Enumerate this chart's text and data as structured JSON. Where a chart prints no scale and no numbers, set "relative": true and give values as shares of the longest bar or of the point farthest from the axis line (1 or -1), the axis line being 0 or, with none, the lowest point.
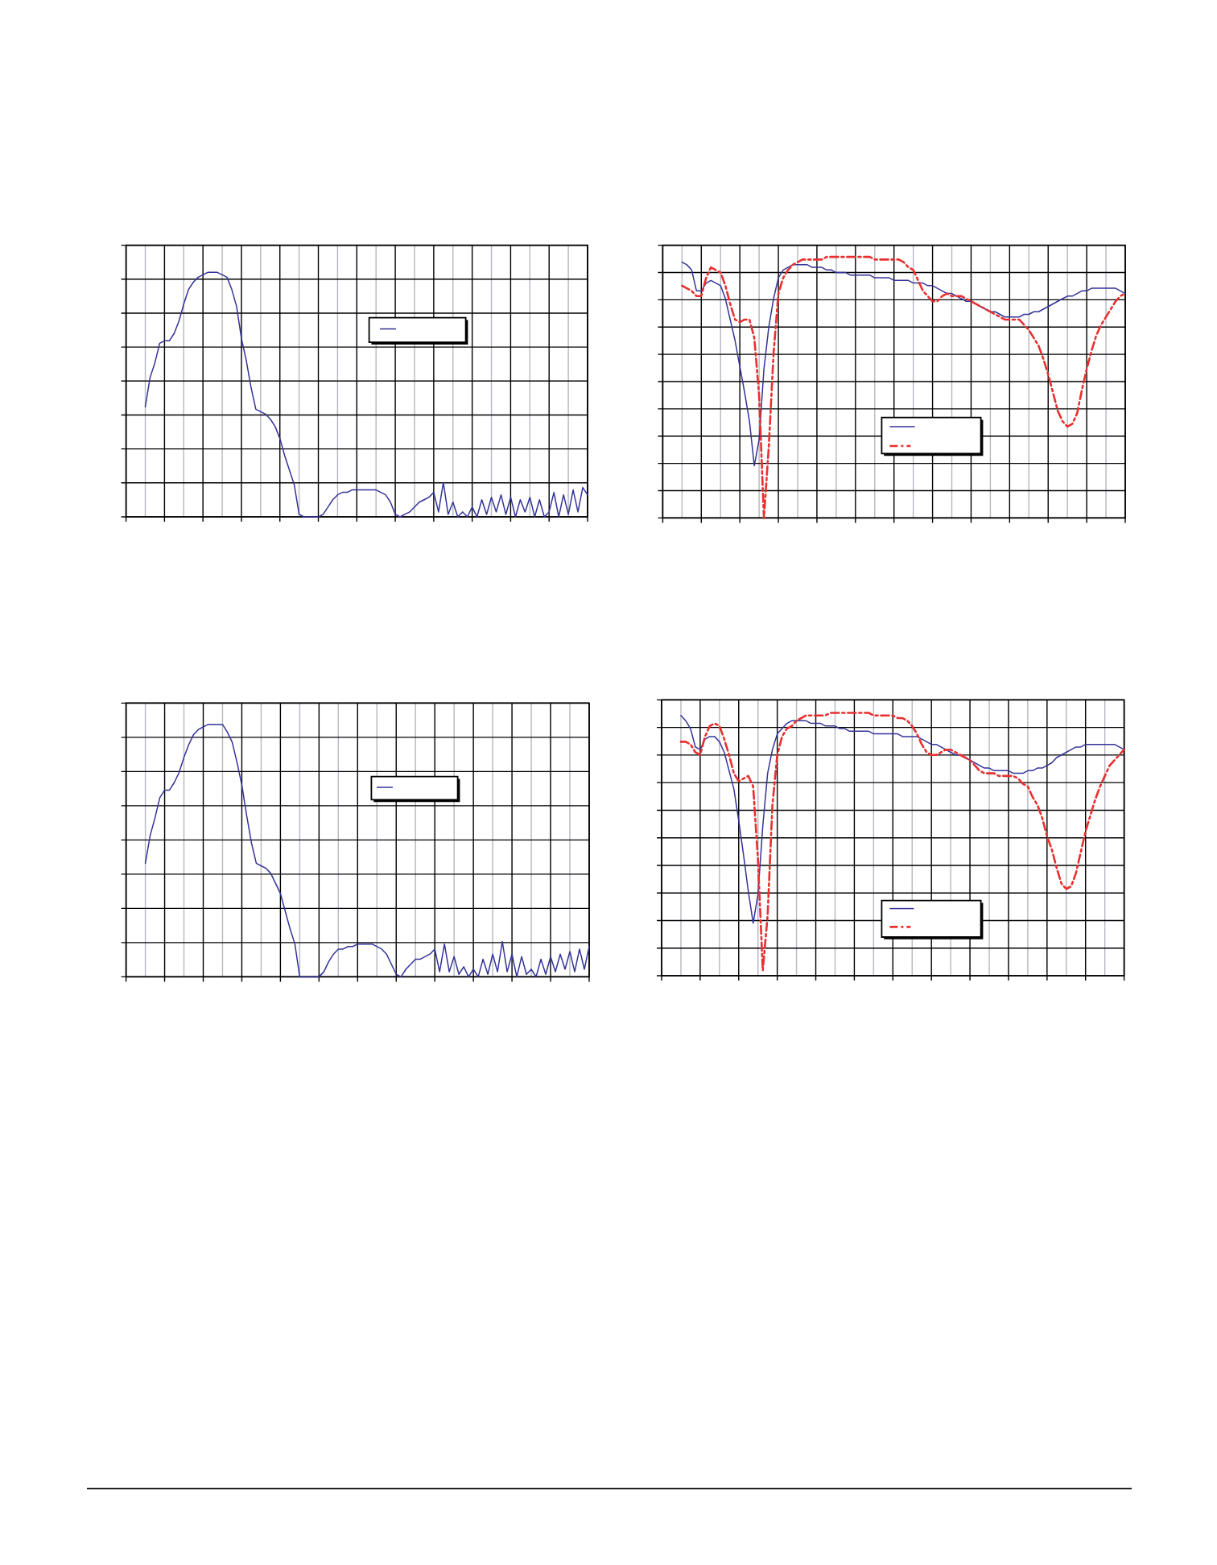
{
  "chart_data": [
    {
      "type": "line",
      "relative": true,
      "grid": true,
      "categories": [
        null,
        null,
        null,
        null,
        null,
        null,
        null,
        null,
        null,
        null,
        null,
        null,
        null,
        null,
        null,
        null,
        null,
        null,
        null,
        null,
        null,
        null,
        null,
        null,
        null,
        null,
        null,
        null,
        null,
        null,
        null,
        null,
        null,
        null,
        null,
        null,
        null,
        null,
        null,
        null,
        null,
        null,
        null,
        null,
        null,
        null,
        null,
        null,
        null,
        null,
        null,
        null,
        null,
        null,
        null,
        null,
        null,
        null,
        null,
        null,
        null,
        null,
        null,
        null,
        null,
        null,
        null,
        null,
        null,
        null,
        null,
        null,
        null,
        null,
        null,
        null,
        null,
        null,
        null,
        null,
        null,
        null,
        null,
        null,
        null,
        null,
        null,
        null,
        null,
        null,
        null,
        null,
        null
      ],
      "series": [
        {
          "color": "#333399",
          "values": [
            0.45,
            0.57,
            0.63,
            0.71,
            0.72,
            0.72,
            0.75,
            0.8,
            0.87,
            0.93,
            0.96,
            0.98,
            0.99,
            1.0,
            1.0,
            1.0,
            0.99,
            0.98,
            0.93,
            0.86,
            0.73,
            0.64,
            0.53,
            0.44,
            0.43,
            0.42,
            0.4,
            0.37,
            0.32,
            0.25,
            0.19,
            0.13,
            0.01,
            0,
            0,
            0,
            0,
            0.01,
            0.04,
            0.07,
            0.09,
            0.1,
            0.1,
            0.11,
            0.11,
            0.11,
            0.11,
            0.11,
            0.11,
            0.1,
            0.09,
            0.06,
            0.01,
            0,
            0.01,
            0.02,
            0.04,
            0.06,
            0.07,
            0.08,
            0.1,
            0.02,
            0.14,
            0.01,
            0.06,
            0,
            0.02,
            0,
            0.04,
            0,
            0.07,
            0.01,
            0.08,
            0.02,
            0.09,
            0.01,
            0.08,
            0,
            0.07,
            0.02,
            0.08,
            0,
            0.07,
            0,
            0.02,
            0.1,
            0,
            0.09,
            0.01,
            0.11,
            0.02,
            0.12,
            0.09
          ]
        }
      ]
    },
    {
      "type": "line",
      "relative": true,
      "grid": true,
      "categories": [
        null,
        null,
        null,
        null,
        null,
        null,
        null,
        null,
        null,
        null,
        null,
        null,
        null,
        null,
        null,
        null,
        null,
        null,
        null,
        null,
        null,
        null,
        null,
        null,
        null,
        null,
        null,
        null,
        null,
        null,
        null,
        null,
        null,
        null,
        null,
        null,
        null,
        null,
        null,
        null,
        null,
        null,
        null,
        null,
        null,
        null,
        null,
        null,
        null,
        null,
        null,
        null,
        null,
        null,
        null,
        null,
        null,
        null,
        null,
        null,
        null,
        null,
        null,
        null,
        null,
        null,
        null,
        null,
        null,
        null,
        null,
        null,
        null,
        null,
        null,
        null,
        null,
        null,
        null,
        null,
        null,
        null,
        null,
        null,
        null,
        null,
        null,
        null,
        null,
        null,
        null,
        null,
        null
      ],
      "series": [
        {
          "color": "#333399",
          "values": [
            0.98,
            0.97,
            0.95,
            0.87,
            0.87,
            0.9,
            0.91,
            0.9,
            0.89,
            0.84,
            0.76,
            0.68,
            0.58,
            0.48,
            0.37,
            0.2,
            0.3,
            0.57,
            0.73,
            0.84,
            0.92,
            0.95,
            0.96,
            0.97,
            0.97,
            0.97,
            0.97,
            0.96,
            0.96,
            0.96,
            0.95,
            0.95,
            0.94,
            0.94,
            0.94,
            0.93,
            0.93,
            0.93,
            0.93,
            0.93,
            0.92,
            0.92,
            0.92,
            0.92,
            0.91,
            0.91,
            0.91,
            0.91,
            0.9,
            0.9,
            0.9,
            0.89,
            0.89,
            0.88,
            0.87,
            0.86,
            0.86,
            0.85,
            0.84,
            0.83,
            0.83,
            0.82,
            0.81,
            0.8,
            0.79,
            0.79,
            0.78,
            0.77,
            0.77,
            0.77,
            0.77,
            0.78,
            0.78,
            0.79,
            0.79,
            0.8,
            0.81,
            0.82,
            0.83,
            0.84,
            0.85,
            0.85,
            0.86,
            0.87,
            0.87,
            0.88,
            0.88,
            0.88,
            0.88,
            0.88,
            0.88,
            0.87,
            0.86
          ]
        },
        {
          "color": "#e8302f",
          "line_style": "dashed",
          "values": [
            0.89,
            0.88,
            0.87,
            0.85,
            0.85,
            0.92,
            0.96,
            0.95,
            0.94,
            0.89,
            0.82,
            0.76,
            0.75,
            0.76,
            0.76,
            0.69,
            0.47,
            0,
            0.27,
            0.63,
            0.86,
            0.92,
            0.95,
            0.97,
            0.98,
            0.99,
            0.99,
            0.99,
            0.99,
            0.99,
            1.0,
            1.0,
            1.0,
            1.0,
            1.0,
            1.0,
            1.0,
            1.0,
            1.0,
            1.0,
            0.99,
            0.99,
            0.99,
            0.99,
            0.99,
            0.99,
            0.98,
            0.96,
            0.95,
            0.91,
            0.87,
            0.85,
            0.83,
            0.83,
            0.85,
            0.86,
            0.85,
            0.85,
            0.85,
            0.84,
            0.83,
            0.82,
            0.81,
            0.8,
            0.79,
            0.78,
            0.77,
            0.76,
            0.76,
            0.76,
            0.76,
            0.74,
            0.72,
            0.69,
            0.66,
            0.61,
            0.55,
            0.48,
            0.41,
            0.37,
            0.35,
            0.36,
            0.4,
            0.49,
            0.57,
            0.64,
            0.7,
            0.74,
            0.77,
            0.8,
            0.83,
            0.85,
            0.86
          ]
        }
      ]
    },
    {
      "type": "line",
      "relative": true,
      "grid": true,
      "categories": [
        null,
        null,
        null,
        null,
        null,
        null,
        null,
        null,
        null,
        null,
        null,
        null,
        null,
        null,
        null,
        null,
        null,
        null,
        null,
        null,
        null,
        null,
        null,
        null,
        null,
        null,
        null,
        null,
        null,
        null,
        null,
        null,
        null,
        null,
        null,
        null,
        null,
        null,
        null,
        null,
        null,
        null,
        null,
        null,
        null,
        null,
        null,
        null,
        null,
        null,
        null,
        null,
        null,
        null,
        null,
        null,
        null,
        null,
        null,
        null,
        null,
        null,
        null,
        null,
        null,
        null,
        null,
        null,
        null,
        null,
        null,
        null,
        null,
        null,
        null,
        null,
        null,
        null,
        null,
        null,
        null,
        null,
        null,
        null,
        null,
        null,
        null,
        null,
        null,
        null,
        null,
        null,
        null
      ],
      "series": [
        {
          "color": "#333399",
          "values": [
            0.45,
            0.56,
            0.63,
            0.71,
            0.74,
            0.74,
            0.77,
            0.81,
            0.87,
            0.92,
            0.96,
            0.98,
            0.99,
            1.0,
            1.0,
            1.0,
            1.0,
            0.97,
            0.93,
            0.85,
            0.76,
            0.64,
            0.53,
            0.45,
            0.44,
            0.43,
            0.41,
            0.37,
            0.33,
            0.26,
            0.19,
            0.13,
            0,
            0,
            0,
            0,
            0,
            0.02,
            0.06,
            0.09,
            0.11,
            0.11,
            0.12,
            0.12,
            0.13,
            0.13,
            0.13,
            0.13,
            0.12,
            0.11,
            0.09,
            0.05,
            0.01,
            0,
            0.03,
            0.05,
            0.07,
            0.07,
            0.08,
            0.09,
            0.11,
            0.02,
            0.13,
            0.02,
            0.08,
            0.01,
            0.04,
            0,
            0.03,
            0,
            0.07,
            0.01,
            0.09,
            0.02,
            0.14,
            0.02,
            0.09,
            0,
            0.08,
            0.01,
            0.03,
            0,
            0.07,
            0.01,
            0.08,
            0.02,
            0.09,
            0.03,
            0.1,
            0.02,
            0.11,
            0.03,
            0.12
          ]
        }
      ]
    },
    {
      "type": "line",
      "relative": true,
      "grid": true,
      "categories": [
        null,
        null,
        null,
        null,
        null,
        null,
        null,
        null,
        null,
        null,
        null,
        null,
        null,
        null,
        null,
        null,
        null,
        null,
        null,
        null,
        null,
        null,
        null,
        null,
        null,
        null,
        null,
        null,
        null,
        null,
        null,
        null,
        null,
        null,
        null,
        null,
        null,
        null,
        null,
        null,
        null,
        null,
        null,
        null,
        null,
        null,
        null,
        null,
        null,
        null,
        null,
        null,
        null,
        null,
        null,
        null,
        null,
        null,
        null,
        null,
        null,
        null,
        null,
        null,
        null,
        null,
        null,
        null,
        null,
        null,
        null,
        null,
        null,
        null,
        null,
        null,
        null,
        null,
        null,
        null,
        null,
        null,
        null,
        null,
        null,
        null,
        null,
        null,
        null,
        null,
        null,
        null,
        null
      ],
      "series": [
        {
          "color": "#333399",
          "values": [
            0.99,
            0.97,
            0.94,
            0.87,
            0.86,
            0.9,
            0.91,
            0.91,
            0.89,
            0.85,
            0.78,
            0.71,
            0.59,
            0.46,
            0.32,
            0.2,
            0.31,
            0.57,
            0.77,
            0.86,
            0.92,
            0.94,
            0.96,
            0.97,
            0.97,
            0.97,
            0.97,
            0.96,
            0.96,
            0.96,
            0.95,
            0.95,
            0.95,
            0.94,
            0.94,
            0.93,
            0.93,
            0.93,
            0.93,
            0.93,
            0.92,
            0.92,
            0.92,
            0.92,
            0.92,
            0.92,
            0.91,
            0.91,
            0.91,
            0.91,
            0.9,
            0.89,
            0.88,
            0.88,
            0.87,
            0.86,
            0.85,
            0.84,
            0.84,
            0.83,
            0.82,
            0.81,
            0.8,
            0.79,
            0.79,
            0.78,
            0.78,
            0.78,
            0.78,
            0.77,
            0.77,
            0.77,
            0.78,
            0.78,
            0.79,
            0.79,
            0.8,
            0.81,
            0.83,
            0.84,
            0.85,
            0.86,
            0.87,
            0.87,
            0.88,
            0.88,
            0.88,
            0.88,
            0.88,
            0.88,
            0.88,
            0.87,
            0.86
          ]
        },
        {
          "color": "#e8302f",
          "line_style": "dashed",
          "values": [
            0.89,
            0.89,
            0.88,
            0.85,
            0.84,
            0.91,
            0.95,
            0.96,
            0.95,
            0.9,
            0.84,
            0.77,
            0.74,
            0.75,
            0.76,
            0.72,
            0.44,
            0.02,
            0.23,
            0.65,
            0.84,
            0.91,
            0.94,
            0.95,
            0.97,
            0.98,
            0.99,
            0.99,
            0.99,
            0.99,
            0.99,
            1.0,
            1.0,
            1.0,
            1.0,
            1.0,
            1.0,
            1.0,
            1.0,
            1.0,
            0.99,
            0.99,
            0.99,
            0.99,
            0.99,
            0.98,
            0.98,
            0.97,
            0.95,
            0.92,
            0.88,
            0.85,
            0.84,
            0.84,
            0.85,
            0.86,
            0.86,
            0.85,
            0.84,
            0.83,
            0.82,
            0.8,
            0.78,
            0.77,
            0.77,
            0.77,
            0.76,
            0.76,
            0.76,
            0.76,
            0.75,
            0.73,
            0.72,
            0.68,
            0.65,
            0.6,
            0.53,
            0.48,
            0.41,
            0.35,
            0.33,
            0.34,
            0.39,
            0.47,
            0.55,
            0.61,
            0.67,
            0.72,
            0.76,
            0.8,
            0.82,
            0.84,
            0.86
          ]
        }
      ]
    }
  ]
}
